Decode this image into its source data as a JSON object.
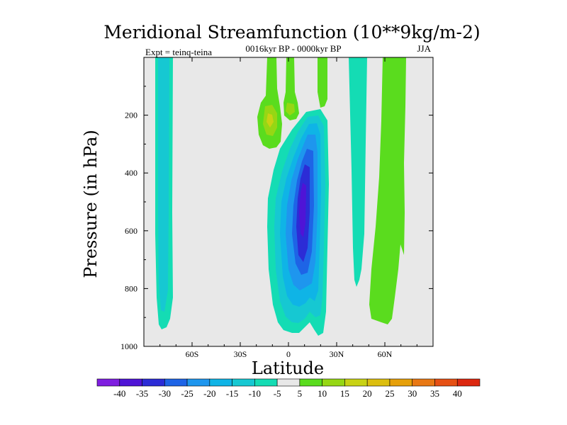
{
  "chart_data": {
    "type": "contour",
    "title": "Meridional Streamfunction (10**9kg/m-2)",
    "subtitle": "0016kyr BP - 0000kyr BP",
    "left_note": "Expt = teinq-teina",
    "right_note": "JJA",
    "xlabel": "Latitude",
    "ylabel": "Pressure (in hPa)",
    "xlim": [
      -90,
      90
    ],
    "ylim": [
      1000,
      0
    ],
    "x_ticks": [
      {
        "value": -60,
        "label": "60S"
      },
      {
        "value": -30,
        "label": "30S"
      },
      {
        "value": 0,
        "label": "0"
      },
      {
        "value": 30,
        "label": "30N"
      },
      {
        "value": 60,
        "label": "60N"
      }
    ],
    "y_ticks": [
      {
        "value": 200,
        "label": "200"
      },
      {
        "value": 400,
        "label": "400"
      },
      {
        "value": 600,
        "label": "600"
      },
      {
        "value": 800,
        "label": "800"
      },
      {
        "value": 1000,
        "label": "1000"
      }
    ],
    "background_color": "#e8e8e8",
    "colorbar": {
      "labels": [
        "-40",
        "-35",
        "-30",
        "-25",
        "-20",
        "-15",
        "-10",
        "-5",
        "5",
        "10",
        "15",
        "20",
        "25",
        "30",
        "35",
        "40"
      ],
      "colors": [
        "#7f1ee0",
        "#4f14d6",
        "#2c2cd6",
        "#1e64e6",
        "#1e96ee",
        "#0fb4e6",
        "#16c8d2",
        "#14dcb4",
        "#e8e8e8",
        "#5adc1e",
        "#96d714",
        "#c8d214",
        "#dcbe0f",
        "#e6a00a",
        "#e87814",
        "#e65014",
        "#dc2810"
      ]
    },
    "features": [
      {
        "name": "south-polar-column",
        "lat_min": -83,
        "lat_max": -74,
        "p_min": 0,
        "p_max": 945,
        "value_range": [
          -10,
          -5
        ]
      },
      {
        "name": "equatorial-cell",
        "lat_min": -13,
        "lat_max": 26,
        "p_min": 155,
        "p_max": 975,
        "value_range": [
          -35,
          -5
        ],
        "center_lat": 8,
        "center_p": 520
      },
      {
        "name": "upper-positive-lobe",
        "lat_min": -18,
        "lat_max": -10,
        "p_min": 0,
        "p_max": 250,
        "value_range": [
          5,
          15
        ]
      },
      {
        "name": "equatorial-upper-lobe",
        "lat_min": -2,
        "lat_max": 8,
        "p_min": 0,
        "p_max": 180,
        "value_range": [
          5,
          15
        ]
      },
      {
        "name": "subtropical-column",
        "lat_min": 40,
        "lat_max": 50,
        "p_min": 0,
        "p_max": 790,
        "value_range": [
          -10,
          -5
        ]
      },
      {
        "name": "northern-positive-column",
        "lat_min": 52,
        "lat_max": 74,
        "p_min": 0,
        "p_max": 925,
        "value_range": [
          5,
          10
        ]
      }
    ]
  }
}
